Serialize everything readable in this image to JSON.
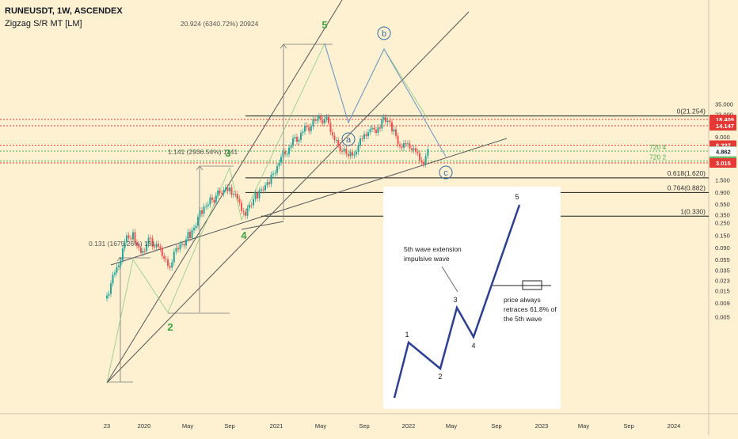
{
  "header": {
    "symbol_line": "RUNEUSDT, 1W, ASCENDEX",
    "indicator_line": "Zigzag S/R MT [LM]"
  },
  "chart_data": {
    "type": "candlestick",
    "yscale": "log",
    "ylim": [
      0.004,
      40
    ],
    "y_ticks": [
      "35.000",
      "23.000",
      "9.000",
      "3.050",
      "1.500",
      "0.900",
      "0.550",
      "0.350",
      "0.250",
      "0.150",
      "0.090",
      "0.055",
      "0.035",
      "0.023",
      "0.015",
      "0.009",
      "0.005"
    ],
    "y_tick_values": [
      35,
      23,
      9,
      3.05,
      1.5,
      0.9,
      0.55,
      0.35,
      0.25,
      0.15,
      0.09,
      0.055,
      0.035,
      0.023,
      0.015,
      0.009,
      0.005
    ],
    "x_ticks": [
      "23",
      "2020",
      "May",
      "Sep",
      "2021",
      "May",
      "Sep",
      "2022",
      "May",
      "Sep",
      "2023",
      "May",
      "Sep",
      "2024"
    ],
    "price_badges": [
      {
        "label": "18.409",
        "value": 18.409,
        "color": "#e53935"
      },
      {
        "label": "14.147",
        "value": 14.147,
        "color": "#e53935"
      },
      {
        "label": "6.337",
        "value": 6.337,
        "color": "#e53935"
      },
      {
        "label": "4.942",
        "value": 4.942,
        "color": "#66bb6a"
      },
      {
        "label": "4.862",
        "value": 4.862,
        "color": "#ffffff"
      },
      {
        "label": "3.266",
        "value": 3.266,
        "color": "#66bb6a"
      },
      {
        "label": "3.015",
        "value": 3.015,
        "color": "#e53935"
      }
    ],
    "zigzag_levels": [
      {
        "label": "720 4",
        "value": 4.942
      },
      {
        "label": "720 2",
        "value": 3.266
      }
    ],
    "fib_levels": [
      {
        "label": "0(21.254)",
        "value": 21.254
      },
      {
        "label": "0.618(1.620)",
        "value": 1.62
      },
      {
        "label": "0.764(0.882)",
        "value": 0.882
      },
      {
        "label": "1(0.330)",
        "value": 0.33
      }
    ],
    "measure_labels": [
      "20.924 (6340.72%) 20924",
      "1.141 (2936.54%) 1141",
      "0.131 (1675.26%) 131"
    ],
    "wave_labels": [
      "2",
      "3",
      "4",
      "5",
      "a",
      "b",
      "c"
    ],
    "inset": {
      "text_extension": [
        "5th wave extension",
        "impulsive wave"
      ],
      "text_retrace": [
        "price always",
        "retraces 61.8% of",
        "the 5th wave"
      ],
      "wave_numbers": [
        "1",
        "2",
        "3",
        "4",
        "5"
      ]
    }
  }
}
